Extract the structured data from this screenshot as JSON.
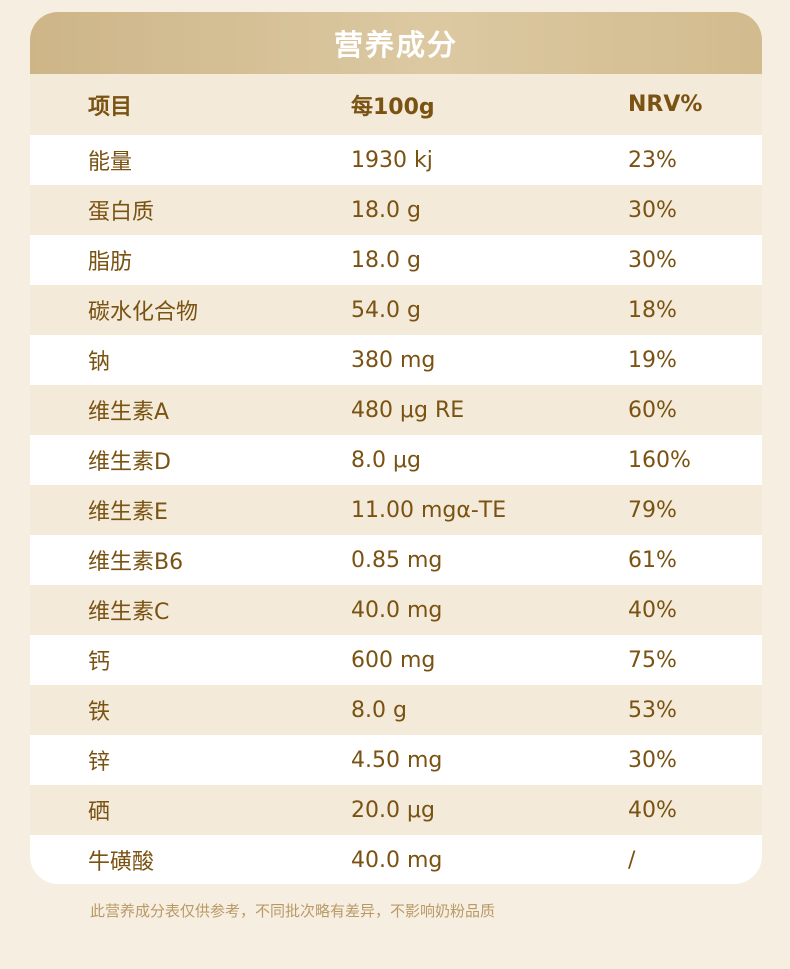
{
  "title": "营养成分",
  "headers": {
    "item": "项目",
    "per100g": "每100g",
    "nrv": "NRV%"
  },
  "rows": [
    {
      "item": "能量",
      "amount": "1930 kj",
      "nrv": "23%"
    },
    {
      "item": "蛋白质",
      "amount": "18.0 g",
      "nrv": "30%"
    },
    {
      "item": "脂肪",
      "amount": "18.0 g",
      "nrv": "30%"
    },
    {
      "item": "碳水化合物",
      "amount": "54.0 g",
      "nrv": "18%"
    },
    {
      "item": "钠",
      "amount": "380 mg",
      "nrv": "19%"
    },
    {
      "item": "维生素A",
      "amount": "480 μg RE",
      "nrv": "60%"
    },
    {
      "item": "维生素D",
      "amount": "8.0 μg",
      "nrv": "160%"
    },
    {
      "item": "维生素E",
      "amount": "11.00 mgα-TE",
      "nrv": "79%"
    },
    {
      "item": "维生素B6",
      "amount": "0.85 mg",
      "nrv": "61%"
    },
    {
      "item": "维生素C",
      "amount": "40.0 mg",
      "nrv": "40%"
    },
    {
      "item": "钙",
      "amount": "600 mg",
      "nrv": "75%"
    },
    {
      "item": "铁",
      "amount": "8.0 g",
      "nrv": "53%"
    },
    {
      "item": "锌",
      "amount": "4.50 mg",
      "nrv": "30%"
    },
    {
      "item": "硒",
      "amount": "20.0 μg",
      "nrv": "40%"
    },
    {
      "item": "牛磺酸",
      "amount": "40.0 mg",
      "nrv": "/"
    }
  ],
  "footnote": "此营养成分表仅供参考，不同批次略有差异，不影响奶粉品质",
  "colors": {
    "banner": "#cdb588",
    "text": "#7a5212",
    "footnote": "#b99a66",
    "row_alt": "#f3ead9",
    "row_white": "#ffffff"
  }
}
